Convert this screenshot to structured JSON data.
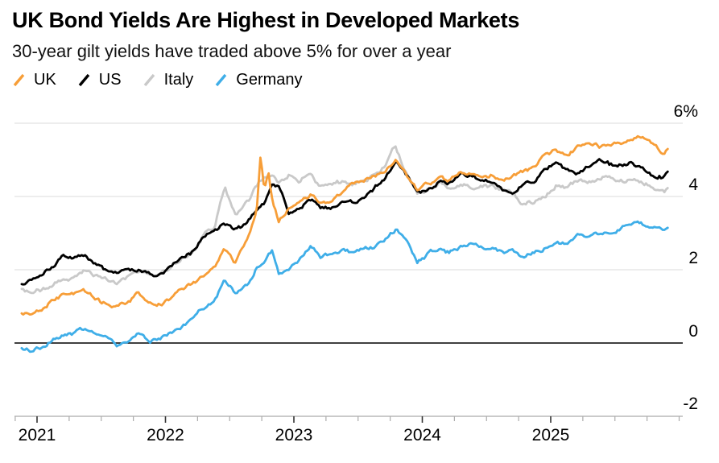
{
  "header": {
    "title": "UK Bond Yields Are Highest in Developed Markets",
    "subtitle": "30-year gilt yields have traded above 5% for over a year"
  },
  "legend": {
    "items": [
      {
        "label": "UK",
        "color": "#F79E38"
      },
      {
        "label": "US",
        "color": "#000000"
      },
      {
        "label": "Italy",
        "color": "#C9C9C9"
      },
      {
        "label": "Germany",
        "color": "#3FAEE8"
      }
    ]
  },
  "chart_data": {
    "type": "line",
    "title": "UK Bond Yields Are Highest in Developed Markets",
    "subtitle": "30-year gilt yields have traded above 5% for over a year",
    "unit": "%",
    "legend_position": "top-left",
    "grid": "horizontal",
    "style": {
      "grid_color": "#DBDBDB",
      "axis_color": "#ABABAB",
      "major_tick_color": "#333333",
      "label_color": "#000000",
      "zero_line_color": "#000000"
    },
    "x_axis": {
      "tick_labels": [
        "2021",
        "2022",
        "2023",
        "2024",
        "2025"
      ],
      "tick_values": [
        2021,
        2022,
        2023,
        2024,
        2025
      ],
      "range": [
        2020.83,
        2026.0
      ],
      "minor_tick_interval": 0.25
    },
    "y_axis": {
      "position": "right",
      "range": [
        -2,
        6
      ],
      "gridlines_at": [
        6,
        4,
        2
      ],
      "zero_line": true,
      "ticks": [
        {
          "label": "6%",
          "value": 6
        },
        {
          "label": "4",
          "value": 4
        },
        {
          "label": "2",
          "value": 2
        },
        {
          "label": "0",
          "value": 0
        },
        {
          "label": "-2",
          "value": -2
        }
      ]
    },
    "x": [
      2020.88,
      2020.96,
      2021.04,
      2021.13,
      2021.21,
      2021.29,
      2021.38,
      2021.46,
      2021.54,
      2021.63,
      2021.71,
      2021.79,
      2021.88,
      2021.96,
      2022.04,
      2022.13,
      2022.21,
      2022.29,
      2022.38,
      2022.46,
      2022.54,
      2022.63,
      2022.71,
      2022.74,
      2022.77,
      2022.8,
      2022.83,
      2022.88,
      2022.96,
      2023.04,
      2023.13,
      2023.21,
      2023.29,
      2023.38,
      2023.46,
      2023.54,
      2023.63,
      2023.71,
      2023.79,
      2023.88,
      2023.96,
      2024.04,
      2024.13,
      2024.21,
      2024.29,
      2024.38,
      2024.46,
      2024.54,
      2024.63,
      2024.71,
      2024.79,
      2024.88,
      2024.96,
      2025.04,
      2025.13,
      2025.21,
      2025.29,
      2025.38,
      2025.46,
      2025.54,
      2025.63,
      2025.67,
      2025.71,
      2025.79,
      2025.88,
      2025.92
    ],
    "series": [
      {
        "name": "UK",
        "color": "#F79E38",
        "values": [
          0.82,
          0.8,
          0.88,
          1.2,
          1.35,
          1.32,
          1.38,
          1.22,
          1.05,
          0.98,
          1.15,
          1.35,
          1.12,
          1.05,
          1.18,
          1.45,
          1.6,
          1.8,
          2.0,
          2.55,
          2.2,
          2.8,
          3.55,
          5.05,
          4.15,
          4.75,
          3.95,
          3.35,
          3.65,
          3.9,
          4.05,
          3.8,
          3.85,
          4.1,
          4.4,
          4.45,
          4.55,
          4.7,
          5.0,
          4.55,
          4.15,
          4.35,
          4.5,
          4.4,
          4.7,
          4.6,
          4.55,
          4.6,
          4.45,
          4.55,
          4.7,
          4.8,
          5.1,
          5.3,
          5.1,
          5.3,
          5.45,
          5.35,
          5.4,
          5.45,
          5.55,
          5.65,
          5.6,
          5.45,
          5.2,
          5.35
        ]
      },
      {
        "name": "US",
        "color": "#000000",
        "values": [
          1.62,
          1.65,
          1.85,
          2.15,
          2.4,
          2.32,
          2.32,
          2.12,
          1.92,
          1.88,
          2.02,
          2.02,
          1.88,
          1.9,
          2.1,
          2.28,
          2.48,
          2.9,
          3.05,
          3.28,
          3.05,
          3.25,
          3.65,
          3.75,
          3.85,
          4.1,
          4.3,
          4.25,
          3.55,
          3.65,
          3.9,
          3.7,
          3.7,
          3.9,
          3.85,
          3.95,
          4.25,
          4.5,
          5.0,
          4.55,
          4.05,
          4.15,
          4.4,
          4.35,
          4.62,
          4.6,
          4.45,
          4.4,
          4.15,
          4.0,
          4.4,
          4.45,
          4.75,
          4.9,
          4.7,
          4.6,
          4.8,
          4.95,
          4.85,
          4.9,
          4.9,
          4.85,
          4.75,
          4.6,
          4.55,
          4.65
        ]
      },
      {
        "name": "Italy",
        "color": "#C9C9C9",
        "values": [
          1.42,
          1.4,
          1.48,
          1.62,
          1.7,
          1.8,
          2.02,
          1.85,
          1.7,
          1.68,
          1.85,
          2.0,
          1.85,
          1.9,
          2.05,
          2.3,
          2.5,
          2.9,
          3.2,
          4.25,
          3.45,
          3.75,
          4.25,
          4.45,
          4.5,
          4.55,
          4.65,
          4.4,
          4.6,
          4.4,
          4.6,
          4.25,
          4.4,
          4.4,
          4.35,
          4.4,
          4.55,
          4.85,
          5.35,
          4.55,
          4.05,
          4.2,
          4.35,
          4.25,
          4.35,
          4.3,
          4.3,
          4.25,
          4.15,
          4.1,
          3.8,
          3.9,
          4.05,
          4.35,
          4.25,
          4.45,
          4.4,
          4.45,
          4.5,
          4.45,
          4.4,
          4.42,
          4.4,
          4.3,
          4.15,
          4.2
        ]
      },
      {
        "name": "Germany",
        "color": "#3FAEE8",
        "values": [
          -0.15,
          -0.2,
          -0.1,
          0.08,
          0.25,
          0.28,
          0.42,
          0.28,
          0.1,
          -0.08,
          0.08,
          0.22,
          0.05,
          0.12,
          0.3,
          0.5,
          0.62,
          0.95,
          1.12,
          1.8,
          1.35,
          1.55,
          2.05,
          2.15,
          2.25,
          2.4,
          2.5,
          1.85,
          2.05,
          2.28,
          2.6,
          2.35,
          2.45,
          2.52,
          2.5,
          2.55,
          2.62,
          2.85,
          3.1,
          2.8,
          2.2,
          2.45,
          2.58,
          2.48,
          2.62,
          2.7,
          2.58,
          2.58,
          2.45,
          2.52,
          2.35,
          2.48,
          2.58,
          2.75,
          2.7,
          3.0,
          2.9,
          3.0,
          3.05,
          3.15,
          3.25,
          3.3,
          3.25,
          3.2,
          3.1,
          3.25
        ]
      }
    ]
  }
}
